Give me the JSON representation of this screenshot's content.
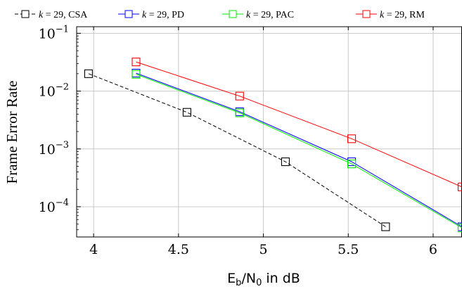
{
  "chart_data": {
    "type": "line",
    "xlabel": "E_b/N_0 in dB",
    "xlabel_parts": {
      "E": "E",
      "b": "b",
      "slash": "/N",
      "zero": "0",
      "rest": " in dB"
    },
    "ylabel": "Frame Error Rate",
    "xscale": "linear",
    "yscale": "log",
    "xlim": [
      3.9,
      6.17
    ],
    "ylim": [
      3e-05,
      0.13
    ],
    "grid": true,
    "legend_position": "top",
    "x_ticks": [
      4,
      4.5,
      5,
      5.5,
      6
    ],
    "x_tick_labels": [
      "4",
      "4.5",
      "5",
      "5.5",
      "6"
    ],
    "y_ticks": [
      {
        "value": 0.1,
        "base": "10",
        "exp": "−1"
      },
      {
        "value": 0.01,
        "base": "10",
        "exp": "−2"
      },
      {
        "value": 0.001,
        "base": "10",
        "exp": "−3"
      },
      {
        "value": 0.0001,
        "base": "10",
        "exp": "−4"
      }
    ],
    "series": [
      {
        "name": "k = 29, CSA",
        "legend": {
          "prefix": "k",
          "rest": " = 29, CSA"
        },
        "color": "#000000",
        "dashed": true,
        "x": [
          3.97,
          4.55,
          5.13,
          5.72
        ],
        "y": [
          0.02,
          0.0043,
          0.0006,
          4.5e-05
        ]
      },
      {
        "name": "k = 29, PD",
        "legend": {
          "prefix": "k",
          "rest": " = 29, PD"
        },
        "color": "#0000ff",
        "dashed": false,
        "x": [
          4.25,
          4.86,
          5.52,
          6.17
        ],
        "y": [
          0.0205,
          0.0044,
          0.0006,
          4.5e-05
        ]
      },
      {
        "name": "k = 29, PAC",
        "legend": {
          "prefix": "k",
          "rest": " = 29, PAC"
        },
        "color": "#00ee00",
        "dashed": false,
        "x": [
          4.25,
          4.86,
          5.52,
          6.17
        ],
        "y": [
          0.0195,
          0.0042,
          0.00055,
          4.3e-05
        ]
      },
      {
        "name": "k = 29, RM",
        "legend": {
          "prefix": "k",
          "rest": " = 29, RM"
        },
        "color": "#ff0000",
        "dashed": false,
        "x": [
          4.25,
          4.86,
          5.52,
          6.17
        ],
        "y": [
          0.032,
          0.0082,
          0.0015,
          0.00022
        ]
      }
    ]
  }
}
